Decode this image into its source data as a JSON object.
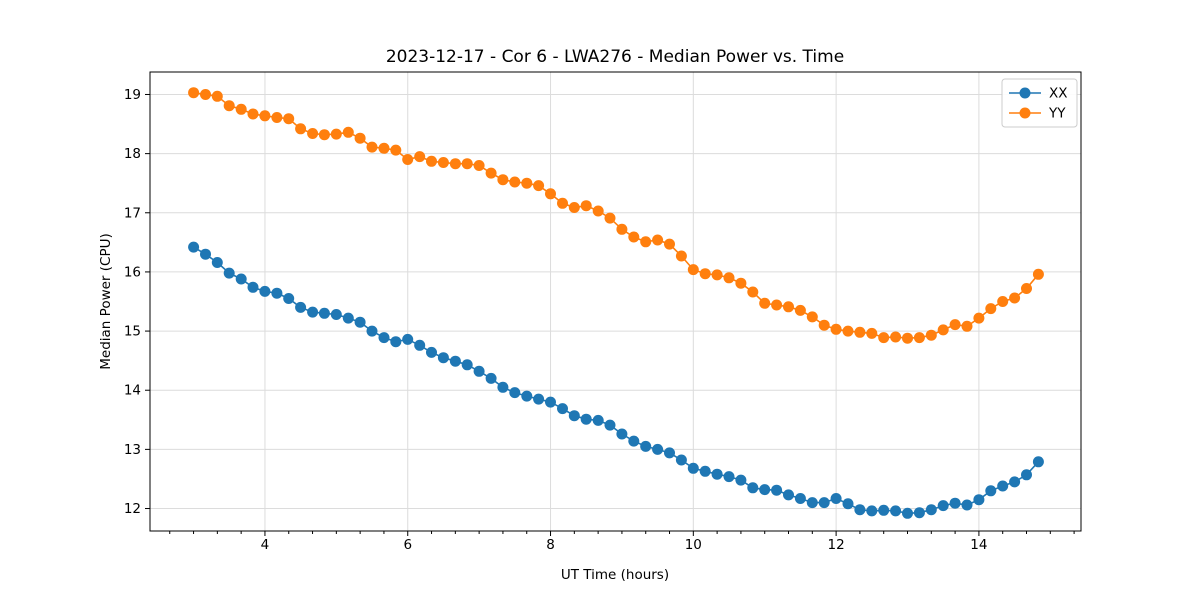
{
  "chart_data": {
    "type": "line",
    "title": "2023-12-17 - Cor 6 - LWA276 - Median Power vs. Time",
    "xlabel": "UT Time (hours)",
    "ylabel": "Median Power (CPU)",
    "xlim": [
      2.39,
      15.43
    ],
    "ylim": [
      11.62,
      19.38
    ],
    "x_ticks": [
      4,
      6,
      8,
      10,
      12,
      14
    ],
    "x_minor_tick_step": 0.3333,
    "y_ticks": [
      12,
      13,
      14,
      15,
      16,
      17,
      18,
      19
    ],
    "grid": true,
    "legend_position": "upper right",
    "marker": "circle",
    "x": [
      3.0,
      3.167,
      3.333,
      3.5,
      3.667,
      3.833,
      4.0,
      4.167,
      4.333,
      4.5,
      4.667,
      4.833,
      5.0,
      5.167,
      5.333,
      5.5,
      5.667,
      5.833,
      6.0,
      6.167,
      6.333,
      6.5,
      6.667,
      6.833,
      7.0,
      7.167,
      7.333,
      7.5,
      7.667,
      7.833,
      8.0,
      8.167,
      8.333,
      8.5,
      8.667,
      8.833,
      9.0,
      9.167,
      9.333,
      9.5,
      9.667,
      9.833,
      10.0,
      10.167,
      10.333,
      10.5,
      10.667,
      10.833,
      11.0,
      11.167,
      11.333,
      11.5,
      11.667,
      11.833,
      12.0,
      12.167,
      12.333,
      12.5,
      12.667,
      12.833,
      13.0,
      13.167,
      13.333,
      13.5,
      13.667,
      13.833,
      14.0,
      14.167,
      14.333,
      14.5,
      14.667,
      14.833
    ],
    "series": [
      {
        "name": "XX",
        "color": "#1f77b4",
        "values": [
          16.42,
          16.3,
          16.16,
          15.98,
          15.88,
          15.74,
          15.67,
          15.64,
          15.55,
          15.4,
          15.32,
          15.3,
          15.28,
          15.22,
          15.15,
          15.0,
          14.89,
          14.82,
          14.86,
          14.76,
          14.64,
          14.55,
          14.49,
          14.43,
          14.32,
          14.2,
          14.05,
          13.96,
          13.9,
          13.85,
          13.8,
          13.69,
          13.57,
          13.51,
          13.49,
          13.41,
          13.26,
          13.14,
          13.05,
          13.0,
          12.94,
          12.82,
          12.68,
          12.63,
          12.58,
          12.54,
          12.48,
          12.35,
          12.32,
          12.31,
          12.23,
          12.17,
          12.1,
          12.1,
          12.17,
          12.08,
          11.98,
          11.96,
          11.97,
          11.96,
          11.92,
          11.93,
          11.98,
          12.05,
          12.09,
          12.06,
          12.15,
          12.3,
          12.38,
          12.45,
          12.57,
          12.79
        ]
      },
      {
        "name": "YY",
        "color": "#ff7f0e",
        "values": [
          19.03,
          19.0,
          18.97,
          18.81,
          18.75,
          18.67,
          18.64,
          18.61,
          18.59,
          18.42,
          18.34,
          18.32,
          18.33,
          18.36,
          18.26,
          18.11,
          18.09,
          18.06,
          17.9,
          17.95,
          17.87,
          17.85,
          17.83,
          17.83,
          17.8,
          17.67,
          17.56,
          17.52,
          17.5,
          17.46,
          17.32,
          17.16,
          17.09,
          17.12,
          17.03,
          16.91,
          16.72,
          16.59,
          16.51,
          16.54,
          16.47,
          16.27,
          16.04,
          15.97,
          15.95,
          15.9,
          15.81,
          15.66,
          15.47,
          15.44,
          15.41,
          15.35,
          15.24,
          15.1,
          15.03,
          15.0,
          14.98,
          14.96,
          14.89,
          14.9,
          14.88,
          14.89,
          14.93,
          15.02,
          15.11,
          15.08,
          15.22,
          15.38,
          15.5,
          15.56,
          15.72,
          15.96
        ]
      }
    ]
  }
}
